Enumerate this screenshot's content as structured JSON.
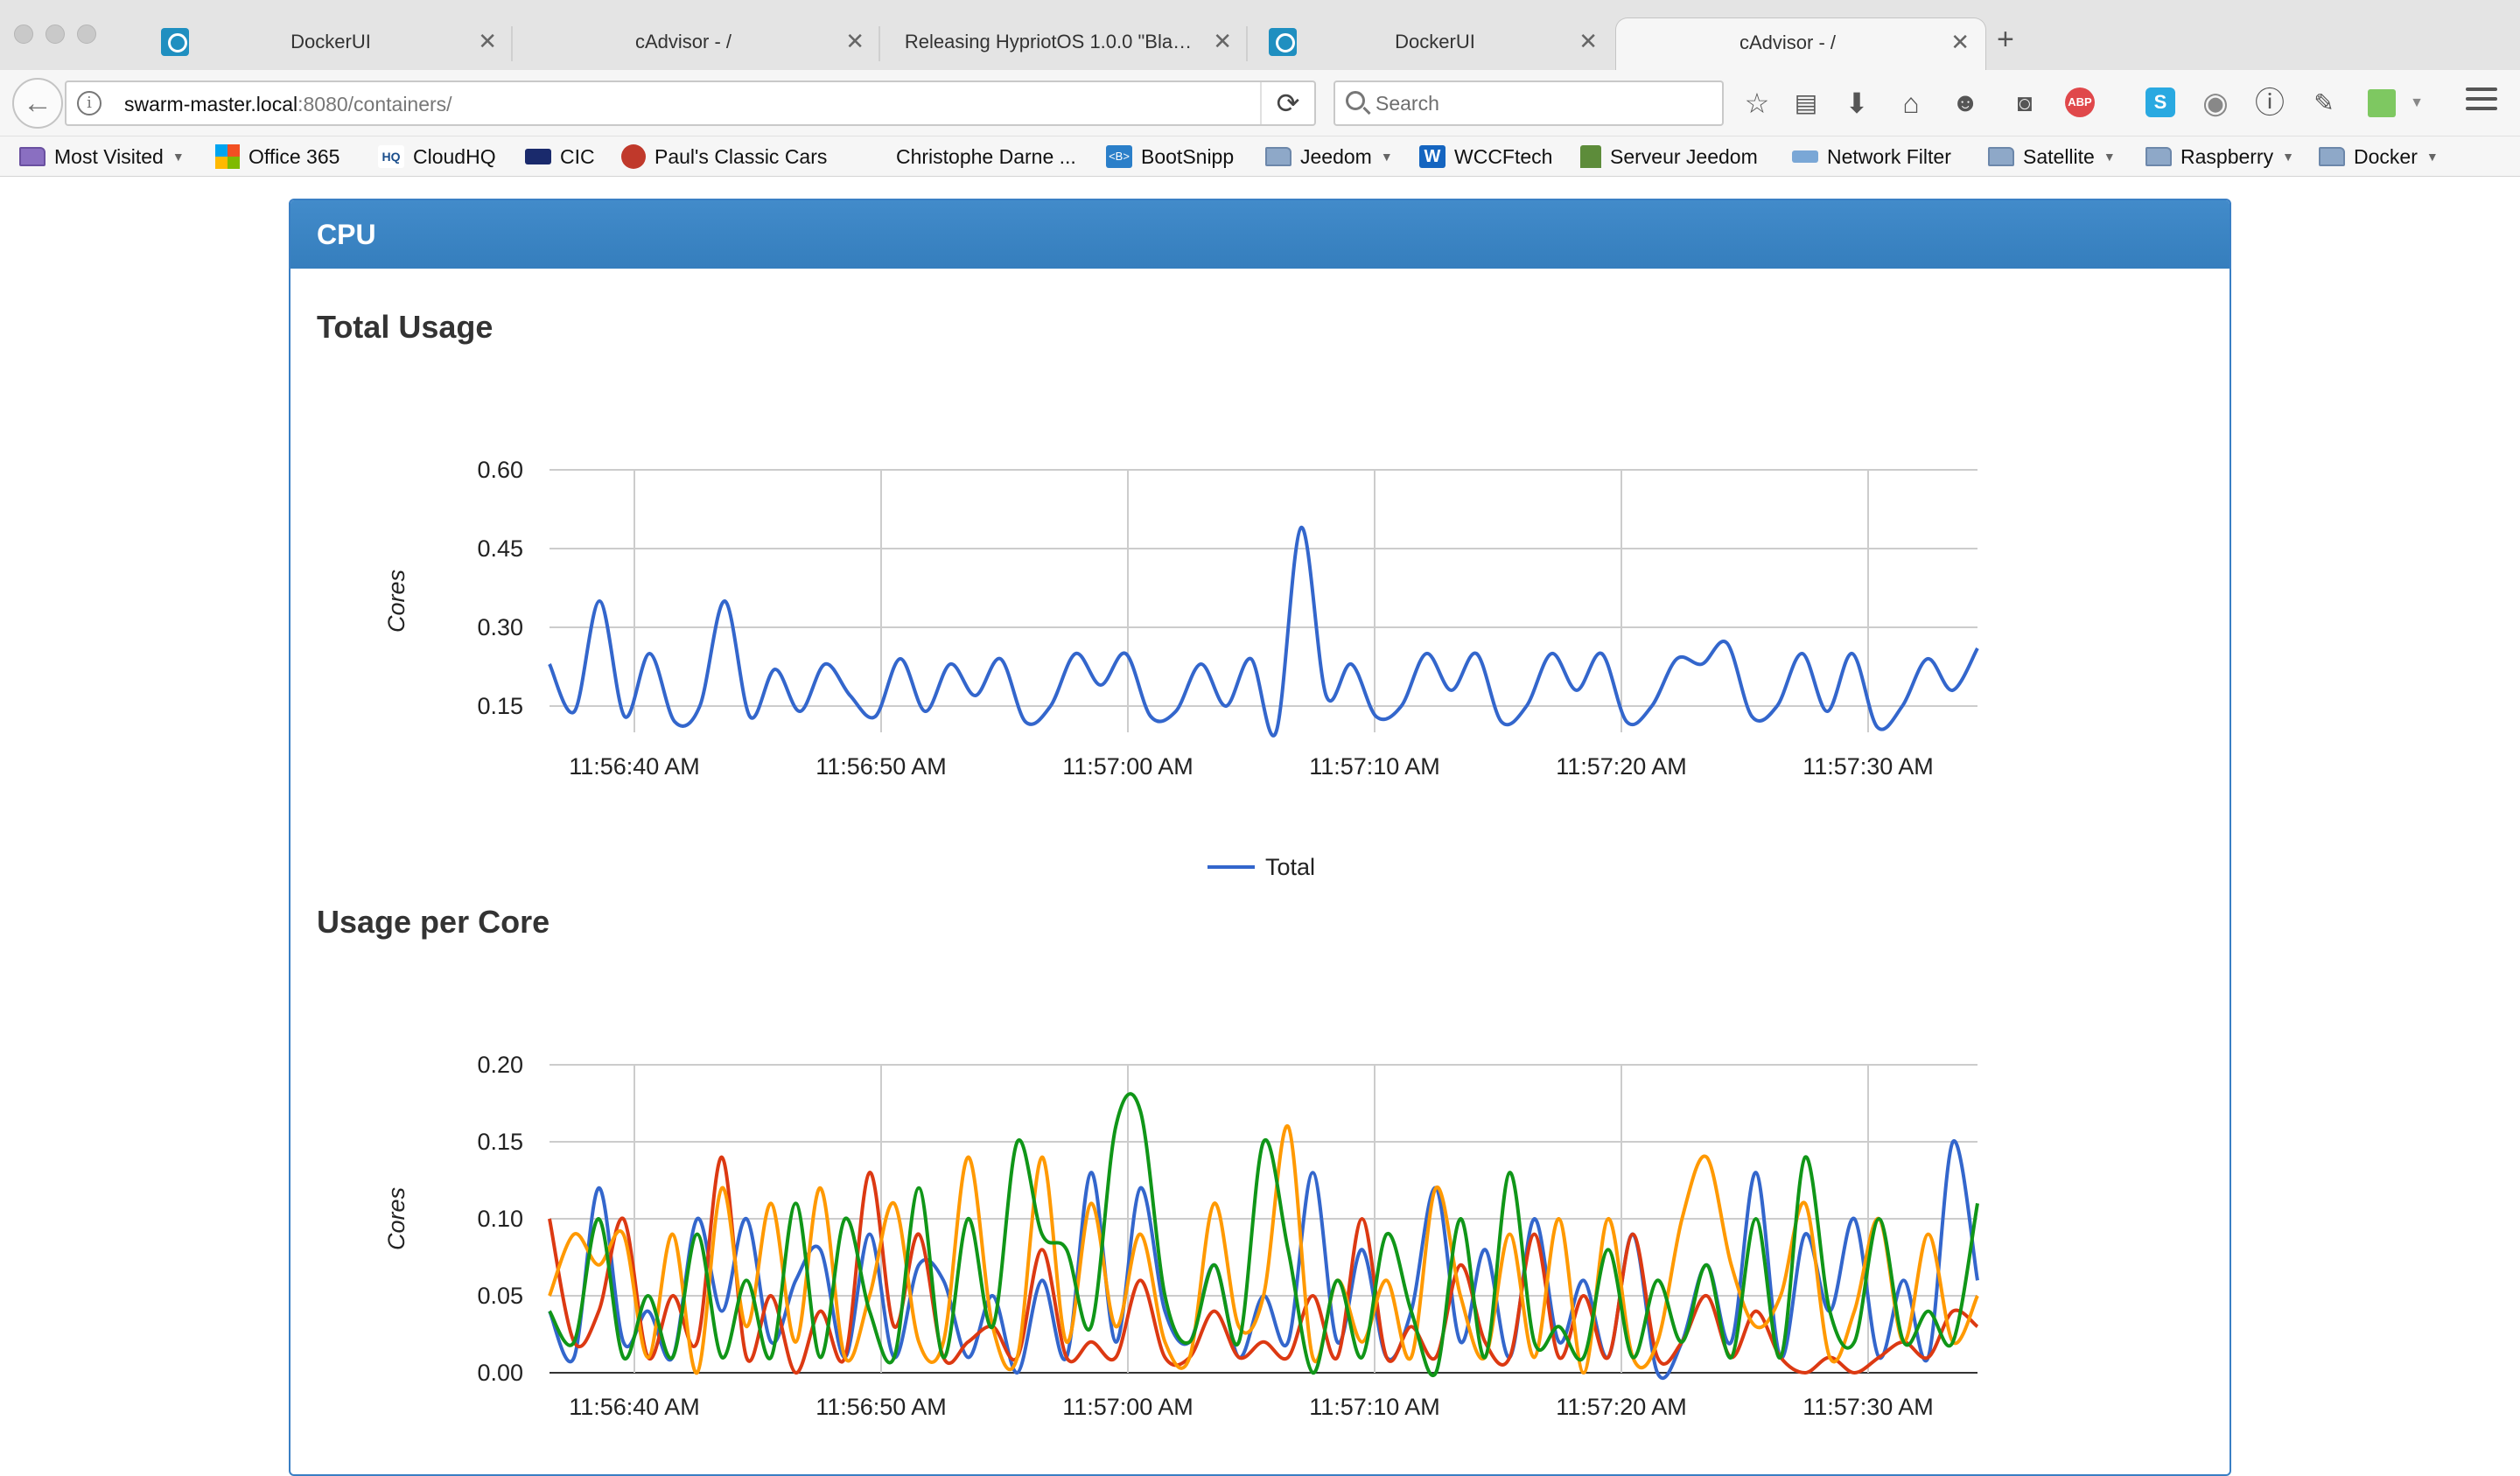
{
  "browser": {
    "tabs": [
      {
        "title": "DockerUI",
        "favicon": "docker-icon"
      },
      {
        "title": "cAdvisor - /",
        "favicon": ""
      },
      {
        "title": "Releasing HypriotOS 1.0.0 \"Bla…",
        "favicon": ""
      },
      {
        "title": "DockerUI",
        "favicon": "docker-icon"
      },
      {
        "title": "cAdvisor - /",
        "favicon": "",
        "active": true
      }
    ],
    "url_host": "swarm-master.local",
    "url_path": ":8080/containers/",
    "search_placeholder": "Search",
    "toolbar_icons": [
      "star-icon",
      "reading-list-icon",
      "download-icon",
      "home-icon",
      "chat-icon",
      "pocket-icon",
      "adblock-icon",
      "skype-icon",
      "profile-icon",
      "info-icon",
      "evernote-icon",
      "extension-icon",
      "menu-icon"
    ],
    "bookmarks": [
      {
        "label": "Most Visited",
        "folder": true,
        "dropdown": true
      },
      {
        "label": "Office 365"
      },
      {
        "label": "CloudHQ"
      },
      {
        "label": "CIC"
      },
      {
        "label": "Paul's Classic Cars"
      },
      {
        "label": "Christophe Darne ..."
      },
      {
        "label": "BootSnipp"
      },
      {
        "label": "Jeedom",
        "folder": true,
        "dropdown": true
      },
      {
        "label": "WCCFtech"
      },
      {
        "label": "Serveur Jeedom"
      },
      {
        "label": "Network Filter"
      },
      {
        "label": "Satellite",
        "folder": true,
        "dropdown": true
      },
      {
        "label": "Raspberry",
        "folder": true,
        "dropdown": true
      },
      {
        "label": "Docker",
        "folder": true,
        "dropdown": true
      }
    ]
  },
  "panel": {
    "title": "CPU"
  },
  "colors": {
    "accent": "#3c86cb",
    "series": [
      "#3366cc",
      "#dc3912",
      "#ff9900",
      "#109618"
    ]
  },
  "chart_data": [
    {
      "type": "line",
      "title": "Total Usage",
      "ylabel": "Cores",
      "ylim": [
        0.1,
        0.6
      ],
      "yticks": [
        "0.60",
        "0.45",
        "0.30",
        "0.15"
      ],
      "xticks": [
        "11:56:40 AM",
        "11:56:50 AM",
        "11:57:00 AM",
        "11:57:10 AM",
        "11:57:20 AM",
        "11:57:30 AM"
      ],
      "legend": "bottom",
      "series": [
        {
          "name": "Total",
          "values": [
            0.23,
            0.14,
            0.35,
            0.13,
            0.25,
            0.12,
            0.15,
            0.35,
            0.13,
            0.22,
            0.14,
            0.23,
            0.17,
            0.13,
            0.24,
            0.14,
            0.23,
            0.17,
            0.24,
            0.12,
            0.15,
            0.25,
            0.19,
            0.25,
            0.13,
            0.14,
            0.23,
            0.15,
            0.24,
            0.1,
            0.49,
            0.17,
            0.23,
            0.13,
            0.15,
            0.25,
            0.18,
            0.25,
            0.12,
            0.15,
            0.25,
            0.18,
            0.25,
            0.12,
            0.15,
            0.24,
            0.23,
            0.27,
            0.13,
            0.15,
            0.25,
            0.14,
            0.25,
            0.11,
            0.15,
            0.24,
            0.18,
            0.26
          ]
        }
      ]
    },
    {
      "type": "line",
      "title": "Usage per Core",
      "ylabel": "Cores",
      "ylim": [
        0,
        0.2
      ],
      "yticks": [
        "0.20",
        "0.15",
        "0.10",
        "0.05",
        "0.00"
      ],
      "xticks": [
        "11:56:40 AM",
        "11:56:50 AM",
        "11:57:00 AM",
        "11:57:10 AM",
        "11:57:20 AM",
        "11:57:30 AM"
      ],
      "series": [
        {
          "values": [
            0.04,
            0.01,
            0.12,
            0.02,
            0.04,
            0.01,
            0.1,
            0.04,
            0.1,
            0.02,
            0.06,
            0.08,
            0.01,
            0.09,
            0.01,
            0.07,
            0.06,
            0.01,
            0.05,
            0.0,
            0.06,
            0.01,
            0.13,
            0.02,
            0.12,
            0.04,
            0.02,
            0.07,
            0.01,
            0.05,
            0.02,
            0.13,
            0.02,
            0.08,
            0.01,
            0.04,
            0.12,
            0.02,
            0.08,
            0.01,
            0.1,
            0.02,
            0.06,
            0.01,
            0.09,
            0.0,
            0.02,
            0.07,
            0.02,
            0.13,
            0.01,
            0.09,
            0.04,
            0.1,
            0.01,
            0.06,
            0.01,
            0.15,
            0.06
          ]
        },
        {
          "values": [
            0.1,
            0.02,
            0.04,
            0.1,
            0.01,
            0.05,
            0.02,
            0.14,
            0.01,
            0.05,
            0.0,
            0.04,
            0.01,
            0.13,
            0.03,
            0.09,
            0.01,
            0.02,
            0.03,
            0.01,
            0.08,
            0.01,
            0.02,
            0.01,
            0.06,
            0.01,
            0.01,
            0.04,
            0.01,
            0.02,
            0.01,
            0.05,
            0.01,
            0.1,
            0.01,
            0.03,
            0.01,
            0.07,
            0.02,
            0.01,
            0.09,
            0.01,
            0.05,
            0.01,
            0.09,
            0.01,
            0.02,
            0.05,
            0.01,
            0.04,
            0.01,
            0.0,
            0.01,
            0.0,
            0.01,
            0.02,
            0.01,
            0.04,
            0.03
          ]
        },
        {
          "values": [
            0.05,
            0.09,
            0.07,
            0.09,
            0.01,
            0.09,
            0.0,
            0.12,
            0.03,
            0.11,
            0.02,
            0.12,
            0.01,
            0.05,
            0.11,
            0.02,
            0.02,
            0.14,
            0.03,
            0.01,
            0.14,
            0.02,
            0.11,
            0.03,
            0.09,
            0.02,
            0.01,
            0.11,
            0.03,
            0.05,
            0.16,
            0.01,
            0.06,
            0.02,
            0.06,
            0.01,
            0.12,
            0.05,
            0.01,
            0.09,
            0.01,
            0.1,
            0.0,
            0.1,
            0.01,
            0.02,
            0.1,
            0.14,
            0.07,
            0.03,
            0.05,
            0.11,
            0.01,
            0.04,
            0.1,
            0.02,
            0.09,
            0.02,
            0.05
          ]
        },
        {
          "values": [
            0.04,
            0.02,
            0.1,
            0.01,
            0.05,
            0.01,
            0.09,
            0.01,
            0.06,
            0.01,
            0.11,
            0.01,
            0.1,
            0.04,
            0.01,
            0.12,
            0.01,
            0.1,
            0.03,
            0.15,
            0.09,
            0.08,
            0.03,
            0.16,
            0.17,
            0.05,
            0.02,
            0.07,
            0.02,
            0.15,
            0.08,
            0.0,
            0.06,
            0.01,
            0.09,
            0.04,
            0.0,
            0.1,
            0.01,
            0.13,
            0.02,
            0.03,
            0.01,
            0.08,
            0.01,
            0.06,
            0.02,
            0.07,
            0.01,
            0.1,
            0.01,
            0.14,
            0.04,
            0.02,
            0.1,
            0.02,
            0.04,
            0.02,
            0.11
          ]
        }
      ]
    }
  ]
}
